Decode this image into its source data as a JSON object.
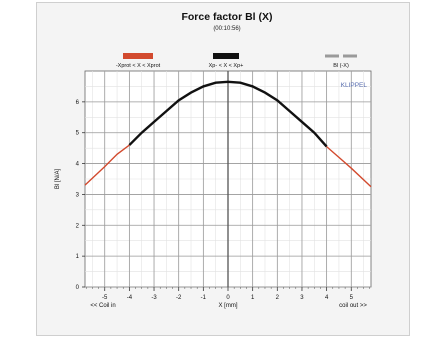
{
  "chart_data": {
    "type": "line",
    "title": "Force factor Bl (X)",
    "subtitle": "(00:10:56)",
    "xlabel": "X [mm]",
    "ylabel": "Bl [N/A]",
    "xlim": [
      -5.8,
      5.8
    ],
    "ylim": [
      0,
      7
    ],
    "x_ticks": [
      -5,
      -4,
      -3,
      -2,
      -1,
      0,
      1,
      2,
      3,
      4,
      5
    ],
    "y_ticks": [
      0,
      1,
      2,
      3,
      4,
      5,
      6
    ],
    "x_end_labels": {
      "left": "<< Coil in",
      "right": "coil out >>"
    },
    "watermark": "KLIPPEL",
    "grid": true,
    "legend_position": "top",
    "legend": [
      {
        "label": "-Xprot < X < Xprot",
        "color": "#d24a2e",
        "style": "solid"
      },
      {
        "label": "Xp- < X < Xp+",
        "color": "#111111",
        "style": "solid"
      },
      {
        "label": "Bl (-X)",
        "color": "#9a9a9a",
        "style": "dashed"
      }
    ],
    "colors": {
      "outer": "#d24a2e",
      "inner": "#111111",
      "mirror": "#9a9a9a",
      "watermark": "#5a6fb0"
    },
    "segments": {
      "outer_left": [
        -5.8,
        -4.0
      ],
      "inner": [
        -4.0,
        4.0
      ],
      "outer_right": [
        4.0,
        5.8
      ]
    },
    "series": [
      {
        "name": "Bl (X)",
        "x": [
          -5.8,
          -5.0,
          -4.5,
          -4.0,
          -3.5,
          -3.0,
          -2.5,
          -2.0,
          -1.5,
          -1.0,
          -0.5,
          0.0,
          0.5,
          1.0,
          1.5,
          2.0,
          2.5,
          3.0,
          3.5,
          4.0,
          4.5,
          5.0,
          5.8
        ],
        "y": [
          3.3,
          3.9,
          4.3,
          4.6,
          5.0,
          5.35,
          5.7,
          6.05,
          6.3,
          6.5,
          6.62,
          6.65,
          6.62,
          6.5,
          6.3,
          6.05,
          5.7,
          5.35,
          5.0,
          4.55,
          4.2,
          3.85,
          3.25
        ]
      }
    ]
  }
}
